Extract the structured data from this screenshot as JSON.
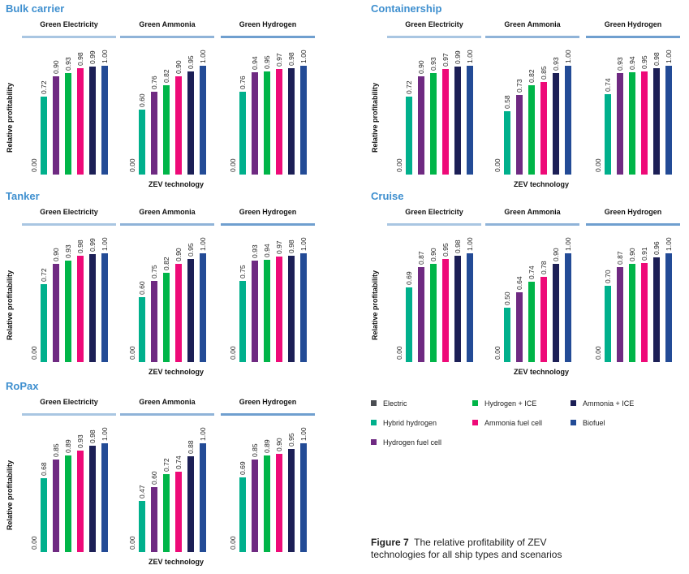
{
  "chart_data": {
    "type": "bar",
    "title": "",
    "caption": {
      "label": "Figure 7",
      "text": "The relative profitability of ZEV technologies for all ship types and scenarios"
    },
    "xlabel": "ZEV technology",
    "ylabel": "Relative profitability",
    "ylim": [
      0,
      1
    ],
    "legend_position": "bottom-right",
    "categories": [
      "Electric",
      "Hybrid hydrogen",
      "Hydrogen fuel cell",
      "Hydrogen + ICE",
      "Ammonia fuel cell",
      "Ammonia + ICE",
      "Biofuel"
    ],
    "legend": [
      {
        "name": "Electric",
        "color": "#4a4d52"
      },
      {
        "name": "Hybrid hydrogen",
        "color": "#00b08c"
      },
      {
        "name": "Hydrogen fuel cell",
        "color": "#6f2a82"
      },
      {
        "name": "Hydrogen + ICE",
        "color": "#00b548"
      },
      {
        "name": "Ammonia fuel cell",
        "color": "#ee0a78"
      },
      {
        "name": "Ammonia + ICE",
        "color": "#1c1f56"
      },
      {
        "name": "Biofuel",
        "color": "#234b96"
      }
    ],
    "scenario_colors": [
      "#a9c6e2",
      "#8fb3d8",
      "#6f9fcf"
    ],
    "ships": [
      {
        "name": "Bulk carrier",
        "scenarios": [
          {
            "name": "Green Electricity",
            "values": [
              0.0,
              0.72,
              0.9,
              0.93,
              0.98,
              0.99,
              1.0
            ]
          },
          {
            "name": "Green Ammonia",
            "values": [
              0.0,
              0.6,
              0.76,
              0.82,
              0.9,
              0.95,
              1.0
            ]
          },
          {
            "name": "Green Hydrogen",
            "values": [
              0.0,
              0.76,
              0.94,
              0.95,
              0.97,
              0.98,
              1.0
            ]
          }
        ]
      },
      {
        "name": "Containership",
        "scenarios": [
          {
            "name": "Green Electricity",
            "values": [
              0.0,
              0.72,
              0.9,
              0.93,
              0.97,
              0.99,
              1.0
            ]
          },
          {
            "name": "Green Ammonia",
            "values": [
              0.0,
              0.58,
              0.73,
              0.82,
              0.85,
              0.93,
              1.0
            ]
          },
          {
            "name": "Green Hydrogen",
            "values": [
              0.0,
              0.74,
              0.93,
              0.94,
              0.95,
              0.98,
              1.0
            ]
          }
        ]
      },
      {
        "name": "Tanker",
        "scenarios": [
          {
            "name": "Green Electricity",
            "values": [
              0.0,
              0.72,
              0.9,
              0.93,
              0.98,
              0.99,
              1.0
            ]
          },
          {
            "name": "Green Ammonia",
            "values": [
              0.0,
              0.6,
              0.75,
              0.82,
              0.9,
              0.95,
              1.0
            ]
          },
          {
            "name": "Green Hydrogen",
            "values": [
              0.0,
              0.75,
              0.93,
              0.94,
              0.97,
              0.98,
              1.0
            ]
          }
        ]
      },
      {
        "name": "Cruise",
        "scenarios": [
          {
            "name": "Green Electricity",
            "values": [
              0.0,
              0.69,
              0.87,
              0.9,
              0.95,
              0.98,
              1.0
            ]
          },
          {
            "name": "Green Ammonia",
            "values": [
              0.0,
              0.5,
              0.64,
              0.74,
              0.78,
              0.9,
              1.0
            ]
          },
          {
            "name": "Green Hydrogen",
            "values": [
              0.0,
              0.7,
              0.87,
              0.9,
              0.91,
              0.96,
              1.0
            ]
          }
        ]
      },
      {
        "name": "RoPax",
        "scenarios": [
          {
            "name": "Green Electricity",
            "values": [
              0.0,
              0.68,
              0.85,
              0.89,
              0.93,
              0.98,
              1.0
            ]
          },
          {
            "name": "Green Ammonia",
            "values": [
              0.0,
              0.47,
              0.6,
              0.72,
              0.74,
              0.88,
              1.0
            ]
          },
          {
            "name": "Green Hydrogen",
            "values": [
              0.0,
              0.69,
              0.85,
              0.89,
              0.9,
              0.95,
              1.0
            ]
          }
        ]
      }
    ]
  }
}
